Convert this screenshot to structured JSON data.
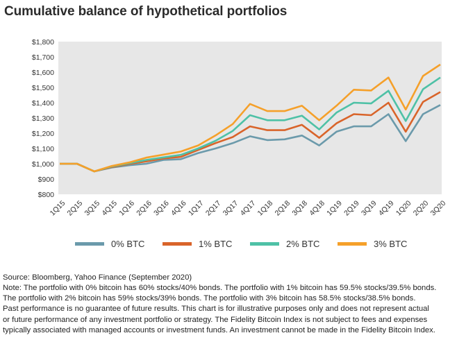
{
  "title": "Cumulative balance of hypothetical portfolios",
  "chart_data": {
    "type": "line",
    "title": "Cumulative balance of hypothetical portfolios",
    "xlabel": "",
    "ylabel": "",
    "categories": [
      "1Q15",
      "2Q15",
      "3Q15",
      "4Q15",
      "1Q16",
      "2Q16",
      "3Q16",
      "4Q16",
      "1Q17",
      "2Q17",
      "3Q17",
      "4Q17",
      "1Q18",
      "2Q18",
      "3Q18",
      "4Q18",
      "1Q19",
      "2Q19",
      "3Q19",
      "4Q19",
      "1Q20",
      "2Q20",
      "3Q20"
    ],
    "y_ticks": [
      "$800",
      "$900",
      "$1,000",
      "$1,100",
      "$1,200",
      "$1,300",
      "$1,400",
      "$1,500",
      "$1,600",
      "$1,700",
      "$1,800"
    ],
    "ylim": [
      800,
      1800
    ],
    "grid": false,
    "legend_position": "bottom",
    "series": [
      {
        "name": "0% BTC",
        "color": "#6b9aab",
        "values": [
          1000,
          1000,
          950,
          975,
          990,
          1000,
          1025,
          1030,
          1070,
          1100,
          1135,
          1180,
          1155,
          1160,
          1185,
          1120,
          1210,
          1245,
          1245,
          1325,
          1148,
          1325,
          1385
        ]
      },
      {
        "name": "1% BTC",
        "color": "#d9642a",
        "values": [
          1000,
          1000,
          950,
          978,
          998,
          1015,
          1035,
          1045,
          1090,
          1135,
          1175,
          1245,
          1220,
          1220,
          1255,
          1170,
          1265,
          1325,
          1318,
          1400,
          1210,
          1405,
          1470
        ]
      },
      {
        "name": "2% BTC",
        "color": "#4ec1a6",
        "values": [
          1000,
          1000,
          950,
          982,
          1003,
          1025,
          1042,
          1058,
          1100,
          1150,
          1215,
          1318,
          1285,
          1285,
          1315,
          1225,
          1335,
          1400,
          1395,
          1478,
          1280,
          1488,
          1565
        ]
      },
      {
        "name": "3% BTC",
        "color": "#f5a02a",
        "values": [
          1000,
          1000,
          950,
          985,
          1008,
          1040,
          1060,
          1080,
          1120,
          1185,
          1260,
          1392,
          1345,
          1345,
          1380,
          1285,
          1380,
          1485,
          1480,
          1565,
          1355,
          1575,
          1650
        ]
      }
    ]
  },
  "source": "Source: Bloomberg, Yahoo Finance (September 2020)",
  "notes": [
    "Note: The portfolio with 0% bitcoin has 60% stocks/40% bonds. The portfolio with 1% bitcoin has 59.5% stocks/39.5% bonds.",
    "The portfolio with 2% bitcoin has 59% stocks/39% bonds. The portfolio with 3% bitcoin has 58.5% stocks/38.5% bonds.",
    "Past performance is no guarantee of future results. This chart is for illustrative purposes only and does not represent actual",
    "or future performance of any investment portfolio or strategy. The Fidelity Bitcoin Index is not subject to fees and expenses",
    "typically associated with managed accounts or investment funds. An investment cannot be made in the Fidelity Bitcoin Index."
  ]
}
